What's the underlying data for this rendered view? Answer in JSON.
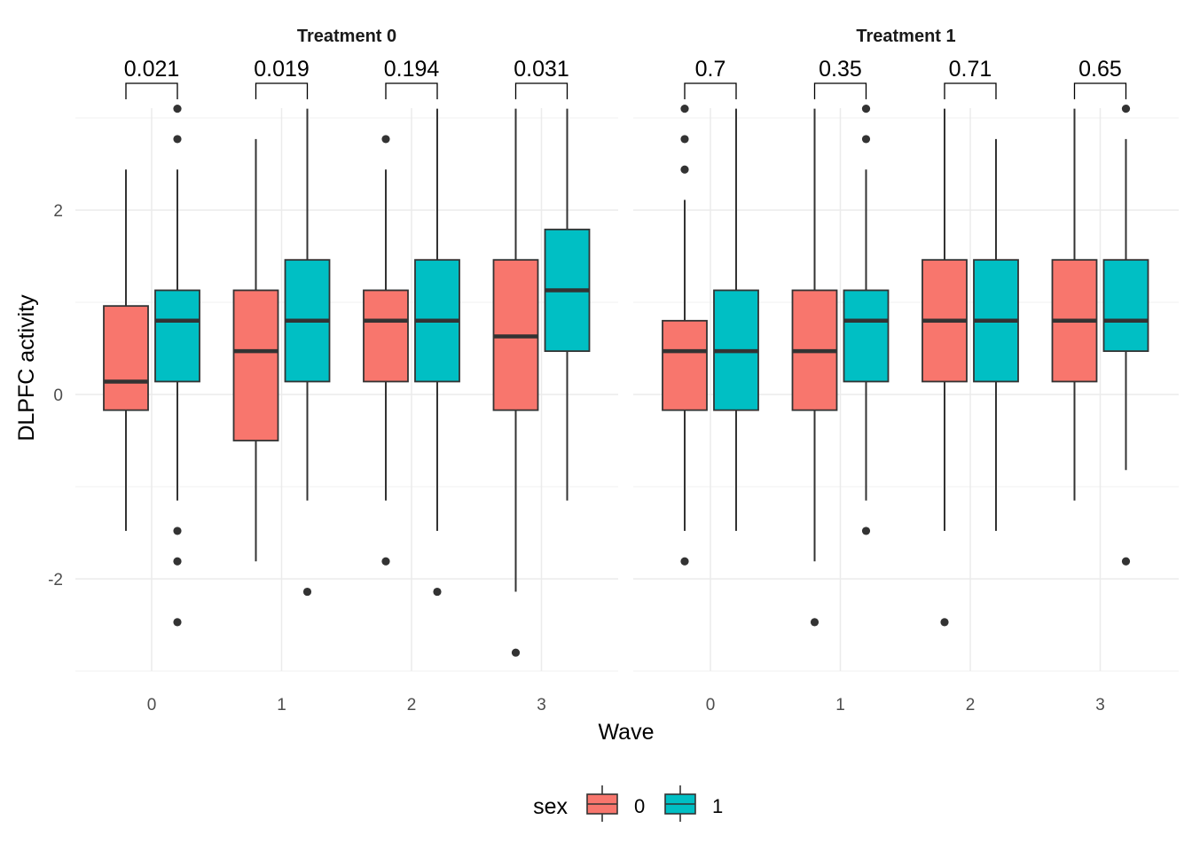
{
  "chart_data": {
    "type": "box",
    "xlabel": "Wave",
    "ylabel": "DLPFC activity",
    "ylim": [
      -3,
      3.1
    ],
    "yticks": [
      -2,
      0,
      2
    ],
    "categories": [
      "0",
      "1",
      "2",
      "3"
    ],
    "grid": true,
    "legend": {
      "title": "sex",
      "position": "bottom",
      "entries": [
        {
          "label": "0",
          "color": "#F8766D"
        },
        {
          "label": "1",
          "color": "#00BFC4"
        }
      ]
    },
    "facets": [
      {
        "title": "Treatment 0",
        "pvalues": [
          "0.021",
          "0.019",
          "0.194",
          "0.031"
        ],
        "groups": [
          {
            "wave": "0",
            "sex": "0",
            "q1": -0.17,
            "median": 0.14,
            "q3": 0.96,
            "whisker_low": -1.48,
            "whisker_high": 2.44,
            "outliers": []
          },
          {
            "wave": "0",
            "sex": "1",
            "q1": 0.14,
            "median": 0.8,
            "q3": 1.13,
            "whisker_low": -1.15,
            "whisker_high": 2.44,
            "outliers": [
              3.1,
              2.77,
              -1.48,
              -1.81,
              -2.47
            ]
          },
          {
            "wave": "1",
            "sex": "0",
            "q1": -0.5,
            "median": 0.47,
            "q3": 1.13,
            "whisker_low": -1.81,
            "whisker_high": 2.77,
            "outliers": []
          },
          {
            "wave": "1",
            "sex": "1",
            "q1": 0.14,
            "median": 0.8,
            "q3": 1.46,
            "whisker_low": -1.15,
            "whisker_high": 3.1,
            "outliers": [
              -2.14
            ]
          },
          {
            "wave": "2",
            "sex": "0",
            "q1": 0.14,
            "median": 0.8,
            "q3": 1.13,
            "whisker_low": -1.15,
            "whisker_high": 2.44,
            "outliers": [
              2.77,
              -1.81
            ]
          },
          {
            "wave": "2",
            "sex": "1",
            "q1": 0.14,
            "median": 0.8,
            "q3": 1.46,
            "whisker_low": -1.48,
            "whisker_high": 3.1,
            "outliers": [
              -2.14
            ]
          },
          {
            "wave": "3",
            "sex": "0",
            "q1": -0.17,
            "median": 0.63,
            "q3": 1.46,
            "whisker_low": -2.14,
            "whisker_high": 3.1,
            "outliers": [
              -2.8
            ]
          },
          {
            "wave": "3",
            "sex": "1",
            "q1": 0.47,
            "median": 1.13,
            "q3": 1.79,
            "whisker_low": -1.15,
            "whisker_high": 3.1,
            "outliers": []
          }
        ]
      },
      {
        "title": "Treatment 1",
        "pvalues": [
          "0.7",
          "0.35",
          "0.71",
          "0.65"
        ],
        "groups": [
          {
            "wave": "0",
            "sex": "0",
            "q1": -0.17,
            "median": 0.47,
            "q3": 0.8,
            "whisker_low": -1.48,
            "whisker_high": 2.11,
            "outliers": [
              3.1,
              2.77,
              2.44,
              -1.81
            ]
          },
          {
            "wave": "0",
            "sex": "1",
            "q1": -0.17,
            "median": 0.47,
            "q3": 1.13,
            "whisker_low": -1.48,
            "whisker_high": 3.1,
            "outliers": []
          },
          {
            "wave": "1",
            "sex": "0",
            "q1": -0.17,
            "median": 0.47,
            "q3": 1.13,
            "whisker_low": -1.81,
            "whisker_high": 3.1,
            "outliers": [
              -2.47
            ]
          },
          {
            "wave": "1",
            "sex": "1",
            "q1": 0.14,
            "median": 0.8,
            "q3": 1.13,
            "whisker_low": -1.15,
            "whisker_high": 2.44,
            "outliers": [
              3.1,
              2.77,
              -1.48
            ]
          },
          {
            "wave": "2",
            "sex": "0",
            "q1": 0.14,
            "median": 0.8,
            "q3": 1.46,
            "whisker_low": -1.48,
            "whisker_high": 3.1,
            "outliers": [
              -2.47
            ]
          },
          {
            "wave": "2",
            "sex": "1",
            "q1": 0.14,
            "median": 0.8,
            "q3": 1.46,
            "whisker_low": -1.48,
            "whisker_high": 2.77,
            "outliers": []
          },
          {
            "wave": "3",
            "sex": "0",
            "q1": 0.14,
            "median": 0.8,
            "q3": 1.46,
            "whisker_low": -1.15,
            "whisker_high": 3.1,
            "outliers": []
          },
          {
            "wave": "3",
            "sex": "1",
            "q1": 0.47,
            "median": 0.8,
            "q3": 1.46,
            "whisker_low": -0.82,
            "whisker_high": 2.77,
            "outliers": [
              3.1,
              -1.81
            ]
          }
        ]
      }
    ]
  }
}
